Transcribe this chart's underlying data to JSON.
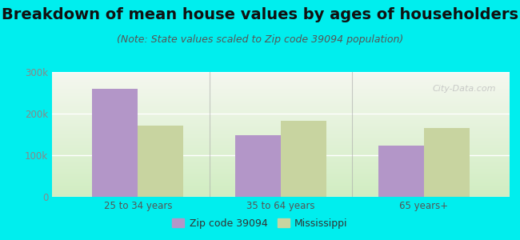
{
  "title": "Breakdown of mean house values by ages of householders",
  "subtitle": "(Note: State values scaled to Zip code 39094 population)",
  "categories": [
    "25 to 34 years",
    "35 to 64 years",
    "65 years+"
  ],
  "zip_values": [
    260000,
    148000,
    123000
  ],
  "state_values": [
    172000,
    183000,
    165000
  ],
  "zip_color": "#b396c8",
  "state_color": "#c8d4a0",
  "background_color": "#00EEEE",
  "plot_bg_top": "#f5f5f0",
  "plot_bg_bottom": "#d8ecc8",
  "ylim": [
    0,
    300000
  ],
  "yticks": [
    0,
    100000,
    200000,
    300000
  ],
  "ytick_labels": [
    "0",
    "100k",
    "200k",
    "300k"
  ],
  "legend_zip": "Zip code 39094",
  "legend_state": "Mississippi",
  "title_fontsize": 14,
  "subtitle_fontsize": 9,
  "bar_width": 0.32,
  "watermark": "City-Data.com"
}
